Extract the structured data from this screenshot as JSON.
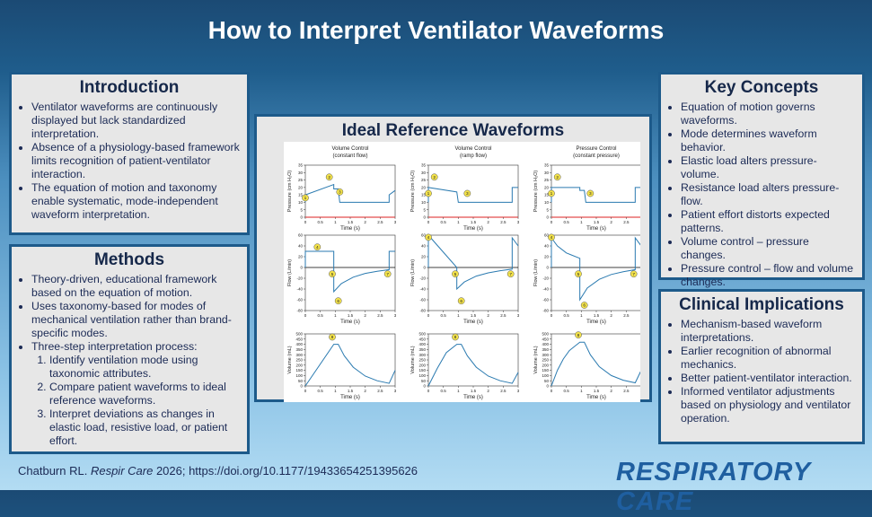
{
  "header": {
    "title": "How to Interpret Ventilator Waveforms"
  },
  "introduction": {
    "heading": "Introduction",
    "items": [
      "Ventilator waveforms are continuously displayed but lack standardized interpretation.",
      "Absence of a physiology-based framework limits recognition of patient-ventilator interaction.",
      "The equation of motion and taxonomy enable systematic, mode-independent waveform interpretation."
    ]
  },
  "methods": {
    "heading": "Methods",
    "items": [
      "Theory-driven, educational framework based on the equation of motion.",
      "Uses taxonomy-based for modes of mechanical ventilation rather than brand-specific modes.",
      "Three-step interpretation process:"
    ],
    "steps": [
      "Identify ventilation mode using taxonomic attributes.",
      "Compare patient waveforms to ideal reference waveforms.",
      "Interpret deviations as changes in elastic load, resistive load, or patient effort."
    ]
  },
  "figure": {
    "title": "Ideal Reference Waveforms",
    "xaxis": {
      "label": "Time (s)",
      "xlim": [
        0,
        3
      ],
      "xticks": [
        0,
        0.5,
        1,
        1.5,
        2,
        2.5,
        3
      ]
    },
    "rows": [
      {
        "ylabel": "Pressure (cm H₂O)",
        "ylim": [
          0,
          35
        ],
        "yticks": [
          0,
          5,
          10,
          15,
          20,
          25,
          30,
          35
        ]
      },
      {
        "ylabel": "Flow (L/min)",
        "ylim": [
          -80,
          60
        ],
        "yticks": [
          -80,
          -60,
          -40,
          -20,
          0,
          20,
          40,
          60
        ]
      },
      {
        "ylabel": "Volume (mL)",
        "ylim": [
          0,
          500
        ],
        "yticks": [
          0,
          50,
          100,
          150,
          200,
          250,
          300,
          350,
          400,
          450,
          500
        ]
      }
    ],
    "columns": [
      {
        "title": "Volume Control",
        "subtitle": "(constant flow)",
        "panels": [
          {
            "x": [
              0,
              0,
              0.95,
              0.95,
              1.1,
              1.15,
              2.8,
              2.8,
              3
            ],
            "y": [
              10,
              15,
              22,
              19,
              19,
              10,
              10,
              15,
              18
            ],
            "markers": [
              {
                "label": "1",
                "x": 0,
                "y": 13
              },
              {
                "label": "2",
                "x": 0.8,
                "y": 27
              },
              {
                "label": "3",
                "x": 1.15,
                "y": 17
              }
            ]
          },
          {
            "x": [
              0,
              0,
              0.95,
              0.95,
              1.2,
              1.6,
              2,
              2.4,
              2.8,
              2.8,
              3
            ],
            "y": [
              0,
              30,
              30,
              -45,
              -30,
              -18,
              -11,
              -7,
              -4,
              30,
              30
            ],
            "markers": [
              {
                "label": "4",
                "x": 0.4,
                "y": 38
              },
              {
                "label": "5",
                "x": 0.9,
                "y": -12
              },
              {
                "label": "6",
                "x": 1.1,
                "y": -62
              },
              {
                "label": "7",
                "x": 2.75,
                "y": -12
              }
            ]
          },
          {
            "x": [
              0,
              0.95,
              1.1,
              1.3,
              1.6,
              2,
              2.4,
              2.8,
              3
            ],
            "y": [
              0,
              400,
              400,
              290,
              180,
              95,
              50,
              25,
              150
            ],
            "markers": [
              {
                "label": "8",
                "x": 0.9,
                "y": 470
              }
            ]
          }
        ]
      },
      {
        "title": "Volume Control",
        "subtitle": "(ramp flow)",
        "panels": [
          {
            "x": [
              0,
              0,
              0.95,
              1,
              2.8,
              2.8,
              3
            ],
            "y": [
              10,
              20,
              17,
              10,
              10,
              20,
              20
            ],
            "markers": [
              {
                "label": "1",
                "x": 0,
                "y": 16
              },
              {
                "label": "2",
                "x": 0.2,
                "y": 27
              },
              {
                "label": "3",
                "x": 1.3,
                "y": 16
              }
            ]
          },
          {
            "x": [
              0,
              0,
              0.95,
              0.95,
              1.2,
              1.6,
              2,
              2.4,
              2.8,
              2.8,
              3
            ],
            "y": [
              0,
              60,
              0,
              -40,
              -27,
              -16,
              -10,
              -6,
              -3,
              55,
              40
            ],
            "markers": [
              {
                "label": "4",
                "x": 0,
                "y": 56
              },
              {
                "label": "5",
                "x": 0.9,
                "y": -12
              },
              {
                "label": "6",
                "x": 1.1,
                "y": -62
              },
              {
                "label": "7",
                "x": 2.75,
                "y": -12
              }
            ]
          },
          {
            "x": [
              0,
              0.3,
              0.6,
              0.95,
              1.1,
              1.3,
              1.6,
              2,
              2.4,
              2.8,
              3
            ],
            "y": [
              0,
              170,
              320,
              400,
              400,
              290,
              180,
              95,
              50,
              25,
              130
            ],
            "markers": [
              {
                "label": "8",
                "x": 0.9,
                "y": 470
              }
            ]
          }
        ]
      },
      {
        "title": "Pressure Control",
        "subtitle": "(constant pressure)",
        "panels": [
          {
            "x": [
              0,
              0,
              0.95,
              0.95,
              1.1,
              1.15,
              2.8,
              2.8,
              3
            ],
            "y": [
              10,
              20,
              20,
              18,
              18,
              10,
              10,
              20,
              20
            ],
            "markers": [
              {
                "label": "1",
                "x": 0,
                "y": 16
              },
              {
                "label": "2",
                "x": 0.2,
                "y": 27
              },
              {
                "label": "3",
                "x": 1.3,
                "y": 16
              }
            ]
          },
          {
            "x": [
              0,
              0,
              0.2,
              0.5,
              0.95,
              0.95,
              1.2,
              1.6,
              2,
              2.4,
              2.8,
              2.8,
              3
            ],
            "y": [
              0,
              55,
              40,
              27,
              17,
              -60,
              -38,
              -22,
              -13,
              -8,
              -4,
              55,
              40
            ],
            "markers": [
              {
                "label": "4",
                "x": 0,
                "y": 56
              },
              {
                "label": "5",
                "x": 0.9,
                "y": -12
              },
              {
                "label": "6",
                "x": 1.1,
                "y": -70
              },
              {
                "label": "7",
                "x": 2.75,
                "y": -12
              }
            ]
          },
          {
            "x": [
              0,
              0.2,
              0.4,
              0.6,
              0.95,
              1.1,
              1.3,
              1.6,
              2,
              2.4,
              2.8,
              3
            ],
            "y": [
              0,
              150,
              260,
              340,
              420,
              420,
              300,
              185,
              100,
              55,
              30,
              150
            ],
            "markers": [
              {
                "label": "8",
                "x": 0.9,
                "y": 490
              }
            ]
          }
        ]
      }
    ]
  },
  "key_concepts": {
    "heading": "Key Concepts",
    "items": [
      "Equation of motion governs waveforms.",
      "Mode determines waveform behavior.",
      "Elastic load alters pressure-volume.",
      "Resistance load alters pressure-flow.",
      "Patient effort distorts expected patterns.",
      "Volume control – pressure changes.",
      "Pressure control – flow and volume changes."
    ]
  },
  "clinical_implications": {
    "heading": "Clinical Implications",
    "items": [
      "Mechanism-based waveform interpretations.",
      "Earlier recognition of abnormal mechanics.",
      "Better patient-ventilator interaction.",
      "Informed ventilator adjustments based on physiology and ventilator operation."
    ]
  },
  "footer": {
    "author": "Chatburn RL.",
    "journal": "Respir Care",
    "reference": "2026; https://doi.org/10.1177/19433654251395626",
    "logo": "RESPIRATORY CARE"
  }
}
